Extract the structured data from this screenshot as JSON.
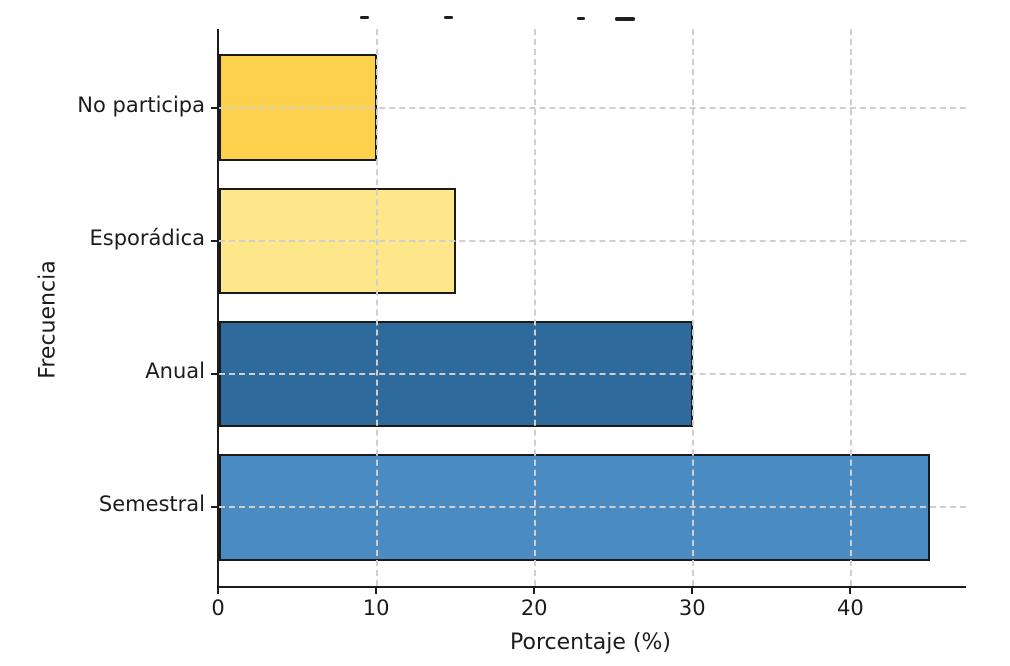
{
  "chart_data": {
    "type": "bar",
    "orientation": "horizontal",
    "categories": [
      "No participa",
      "Esporádica",
      "Anual",
      "Semestral"
    ],
    "values": [
      10,
      15,
      30,
      45
    ],
    "bar_colors": [
      "#FDD14C",
      "#FEE78A",
      "#2E6B9C",
      "#4A8CC1"
    ],
    "bar_edge_color": "#1a1a1a",
    "xlabel": "Porcentaje (%)",
    "ylabel": "Frecuencia",
    "xlim": [
      0,
      47.25
    ],
    "xticks": [
      0,
      10,
      20,
      30,
      40
    ],
    "bar_height_fraction": 0.8,
    "grid": "dashed",
    "grid_color": "#cfcfcf",
    "axis_color": "#1c1c1c",
    "background": "#ffffff",
    "legend": "none",
    "title_note": "title clipped off at top edge; only letter descenders visible"
  }
}
